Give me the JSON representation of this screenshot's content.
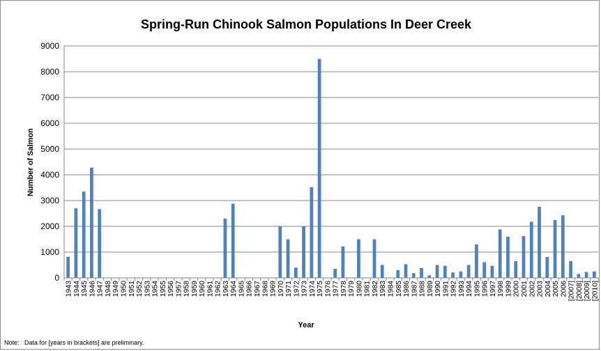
{
  "note": "Note:   Data for [years in brackets] are preliminary.",
  "colors": {
    "bar": "#4f81bd",
    "grid": "#868686",
    "axis": "#868686"
  },
  "chart_data": {
    "type": "bar",
    "title": "Spring-Run Chinook Salmon Populations In Deer Creek",
    "xlabel": "Year",
    "ylabel": "Number of Salmon",
    "ylim": [
      0,
      9000
    ],
    "yticks": [
      0,
      1000,
      2000,
      3000,
      4000,
      5000,
      6000,
      7000,
      8000,
      9000
    ],
    "grid": "horizontal",
    "categories": [
      "1943",
      "1944",
      "1945",
      "1946",
      "1947",
      "1948",
      "1949",
      "1950",
      "1951",
      "1952",
      "1953",
      "1954",
      "1955",
      "1956",
      "1957",
      "1958",
      "1959",
      "1960",
      "1961",
      "1962",
      "1963",
      "1964",
      "1965",
      "1966",
      "1967",
      "1968",
      "1969",
      "1970",
      "1971",
      "1972",
      "1973",
      "1974",
      "1975",
      "1976",
      "1977",
      "1978",
      "1979",
      "1980",
      "1981",
      "1982",
      "1983",
      "1984",
      "1985",
      "1986",
      "1987",
      "1988",
      "1989",
      "1990",
      "1991",
      "1992",
      "1993",
      "1994",
      "1995",
      "1996",
      "1997",
      "1998",
      "1999",
      "2000",
      "2001",
      "2002",
      "2003",
      "2004",
      "2005",
      "2006",
      "[2007]",
      "[2008]",
      "[2009]",
      "[2010]"
    ],
    "values": [
      820,
      2700,
      3350,
      4280,
      2670,
      0,
      0,
      0,
      0,
      0,
      0,
      0,
      0,
      0,
      0,
      0,
      0,
      0,
      0,
      0,
      2300,
      2880,
      0,
      0,
      0,
      0,
      0,
      2000,
      1500,
      400,
      2000,
      3520,
      8500,
      0,
      350,
      1220,
      0,
      1500,
      0,
      1500,
      500,
      0,
      300,
      530,
      180,
      380,
      100,
      500,
      470,
      210,
      250,
      500,
      1300,
      610,
      470,
      1880,
      1600,
      650,
      1620,
      2180,
      2760,
      810,
      2240,
      2430,
      650,
      150,
      230,
      250
    ]
  }
}
